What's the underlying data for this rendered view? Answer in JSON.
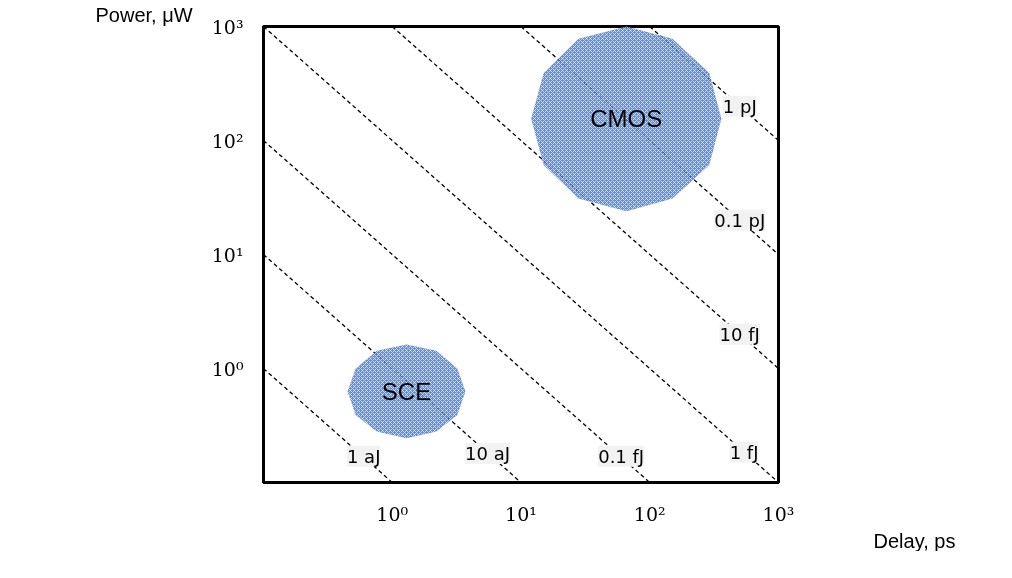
{
  "chart_data": {
    "type": "line",
    "xlabel": "Delay, ps",
    "ylabel": "Power, μW",
    "log": "xy",
    "grid": false,
    "legend": false,
    "line_style": "dashed",
    "marker": "none",
    "xlim": [
      0.1,
      1000
    ],
    "ylim": [
      0.1,
      1000
    ],
    "xticks": [
      {
        "value": 1,
        "label": "10⁰"
      },
      {
        "value": 10,
        "label": "10¹"
      },
      {
        "value": 100,
        "label": "10²"
      },
      {
        "value": 1000,
        "label": "10³"
      }
    ],
    "yticks": [
      {
        "value": 1,
        "label": "10⁰"
      },
      {
        "value": 10,
        "label": "10¹"
      },
      {
        "value": 100,
        "label": "10²"
      },
      {
        "value": 1000,
        "label": "10³"
      }
    ],
    "annotations": [
      {
        "text": "1 aJ",
        "x": 0.6,
        "y": 0.17
      },
      {
        "text": "10 aJ",
        "x": 5.5,
        "y": 0.18
      },
      {
        "text": "0.1 fJ",
        "x": 60,
        "y": 0.17
      },
      {
        "text": "1 fJ",
        "x": 540,
        "y": 0.185
      },
      {
        "text": "10 fJ",
        "x": 500,
        "y": 2
      },
      {
        "text": "0.1 pJ",
        "x": 500,
        "y": 20
      },
      {
        "text": "1 pJ",
        "x": 500,
        "y": 200
      }
    ],
    "series": [
      {
        "color": "#000000",
        "x": [
          0.1,
          1
        ],
        "values": [
          1,
          0.1
        ]
      },
      {
        "color": "#000000",
        "x": [
          0.1,
          10
        ],
        "values": [
          10,
          0.1
        ]
      },
      {
        "color": "#000000",
        "x": [
          0.1,
          100
        ],
        "values": [
          100,
          0.1
        ]
      },
      {
        "color": "#000000",
        "x": [
          0.1,
          1000
        ],
        "values": [
          1000,
          0.1
        ]
      },
      {
        "color": "#000000",
        "x": [
          1,
          1000
        ],
        "values": [
          1000,
          1
        ]
      },
      {
        "color": "#000000",
        "x": [
          10,
          1000
        ],
        "values": [
          1000,
          10
        ]
      },
      {
        "color": "#000000",
        "x": [
          100,
          1000
        ],
        "values": [
          1000,
          100
        ]
      },
      {
        "name": "CMOS",
        "type": "area",
        "color": "#4472c4",
        "x": [
          360,
          290,
          150,
          66,
          28,
          15,
          12,
          15,
          28,
          66,
          150,
          290
        ],
        "values": [
          155,
          390,
          780,
          1000,
          780,
          390,
          155,
          61,
          31,
          24,
          31,
          61
        ]
      },
      {
        "name": "SCE",
        "type": "area",
        "color": "#4472c4",
        "x": [
          3.7,
          3.2,
          2.2,
          1.29,
          0.76,
          0.52,
          0.45,
          0.52,
          0.76,
          1.29,
          2.2,
          3.2
        ],
        "values": [
          0.63,
          1.0,
          1.43,
          1.62,
          1.43,
          1.0,
          0.63,
          0.39,
          0.28,
          0.245,
          0.28,
          0.39
        ]
      }
    ]
  }
}
